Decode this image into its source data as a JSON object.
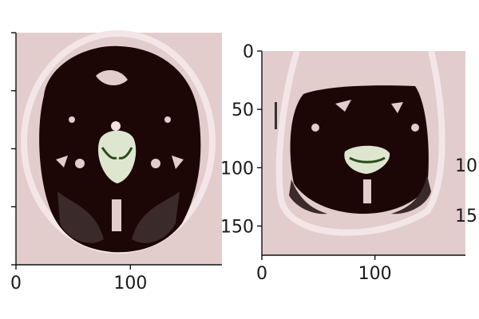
{
  "panels": [
    {
      "id": "left",
      "x_ticks": [
        {
          "value": 0,
          "label": "0"
        },
        {
          "value": 100,
          "label": "100"
        }
      ],
      "y_ticks": [
        {
          "value": 0,
          "label": ""
        },
        {
          "value": 50,
          "label": ""
        },
        {
          "value": 100,
          "label": ""
        },
        {
          "value": 150,
          "label": ""
        },
        {
          "value": 200,
          "label": ""
        }
      ],
      "x_range": [
        0,
        180
      ],
      "y_range": [
        0,
        200
      ]
    },
    {
      "id": "right",
      "x_ticks": [
        {
          "value": 0,
          "label": "0"
        },
        {
          "value": 100,
          "label": "100"
        }
      ],
      "y_ticks": [
        {
          "value": 0,
          "label": "0"
        },
        {
          "value": 50,
          "label": "50"
        },
        {
          "value": 100,
          "label": "100"
        },
        {
          "value": 150,
          "label": "150"
        }
      ],
      "x_range": [
        0,
        180
      ],
      "y_range": [
        0,
        175
      ]
    }
  ],
  "clipped_labels": [
    "10",
    "15"
  ],
  "colors": {
    "background": "#e2cccc",
    "tissue_dark": "#1c0606",
    "tissue_mid": "#3a2a2a",
    "skull": "#f4e6e6",
    "center": "#dfe6cf",
    "center_green": "#2a4a1a"
  }
}
